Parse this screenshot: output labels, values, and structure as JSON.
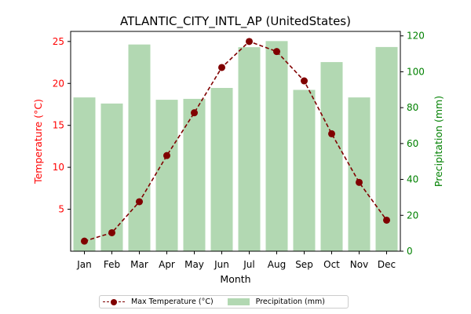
{
  "chart_data": {
    "type": "bar+line",
    "title": "ATLANTIC_CITY_INTL_AP (UnitedStates)",
    "xlabel": "Month",
    "ylabel_left": "Temperature (°C)",
    "ylabel_right": "Precipitation (mm)",
    "categories": [
      "Jan",
      "Feb",
      "Mar",
      "Apr",
      "May",
      "Jun",
      "Jul",
      "Aug",
      "Sep",
      "Oct",
      "Nov",
      "Dec"
    ],
    "left_axis": {
      "ylim": [
        0,
        26.2
      ],
      "ticks": [
        5,
        10,
        15,
        20,
        25
      ]
    },
    "right_axis": {
      "ylim": [
        0,
        122.5
      ],
      "ticks": [
        0,
        20,
        40,
        60,
        80,
        100,
        120
      ]
    },
    "series": [
      {
        "name": "Max Temperature (°C)",
        "type": "line",
        "axis": "left",
        "color": "#800000",
        "line_style": "dashed",
        "marker": "circle",
        "values": [
          1.2,
          2.2,
          5.9,
          11.4,
          16.5,
          21.9,
          25.0,
          23.8,
          20.3,
          14.0,
          8.2,
          3.7
        ]
      },
      {
        "name": "Precipitation (mm)",
        "type": "bar",
        "axis": "right",
        "color": "#b2d8b2",
        "values": [
          85.7,
          82.3,
          115.2,
          84.4,
          84.9,
          91.0,
          113.7,
          117.1,
          89.9,
          105.4,
          85.7,
          113.8
        ]
      }
    ],
    "colors": {
      "left_axis": "#ff0000",
      "right_axis": "#008000"
    },
    "legend_position": "bottom-center",
    "grid": false
  }
}
